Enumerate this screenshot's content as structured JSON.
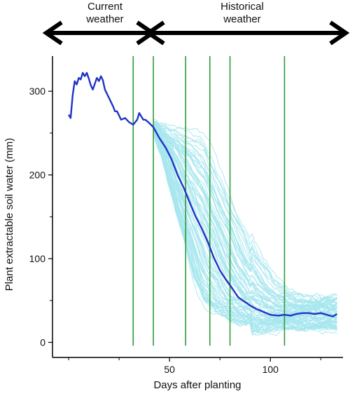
{
  "header": {
    "current_label_1": "Current",
    "current_label_2": "weather",
    "historical_label_1": "Historical",
    "historical_label_2": "weather"
  },
  "chart_data": {
    "type": "line",
    "xlabel": "Days after planting",
    "ylabel": "Plant extractable soil water (mm)",
    "xlim": [
      -8,
      136
    ],
    "ylim": [
      -18,
      342
    ],
    "xticks": [
      50,
      100
    ],
    "yticks": [
      0,
      100,
      200,
      300
    ],
    "grid": false,
    "legend": "none",
    "colors": {
      "current_and_median": "#1f35c4",
      "historical_traces": "#a7e6ef",
      "vertical_markers": "#2e9a3a"
    },
    "vertical_lines_x": [
      32,
      42,
      58,
      70,
      80,
      107
    ],
    "series": [
      {
        "role": "current season to date, then median of historical scenarios",
        "x": [
          0,
          1,
          2,
          3,
          4,
          5,
          6,
          7,
          8,
          9,
          10,
          11,
          12,
          13,
          14,
          15,
          16,
          17,
          18,
          19,
          20,
          21,
          22,
          23,
          24,
          26,
          28,
          30,
          32,
          34,
          35,
          36,
          37,
          38,
          40,
          42,
          45,
          48,
          51,
          54,
          57,
          60,
          63,
          66,
          69,
          72,
          75,
          78,
          81,
          84,
          87,
          90,
          93,
          96,
          100,
          104,
          107,
          110,
          113,
          116,
          119,
          122,
          125,
          128,
          131,
          133
        ],
        "y": [
          272,
          268,
          295,
          312,
          308,
          316,
          314,
          322,
          318,
          322,
          315,
          307,
          302,
          309,
          316,
          312,
          318,
          313,
          302,
          297,
          292,
          287,
          282,
          276,
          276,
          266,
          268,
          263,
          260,
          266,
          274,
          270,
          266,
          266,
          262,
          257,
          244,
          233,
          219,
          200,
          185,
          167,
          150,
          136,
          120,
          101,
          86,
          75,
          65,
          54,
          49,
          44,
          40,
          37,
          33,
          32,
          33,
          32,
          34,
          35,
          35,
          34,
          35,
          33,
          31,
          34
        ]
      }
    ]
  }
}
